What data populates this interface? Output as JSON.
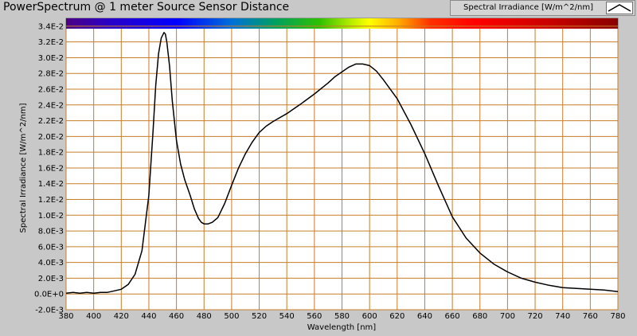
{
  "window": {
    "title": "PowerSpectrum @ 1 meter Source Sensor Distance"
  },
  "legend": {
    "label": "Spectral Irradiance [W/m^2/nm]",
    "swatch_icon": "peak-line-icon"
  },
  "colors": {
    "panel_background": "#c8c8c8",
    "plot_background": "#ffffff",
    "grid": "#c87d2a",
    "trace": "#000000"
  },
  "chart_data": {
    "type": "line",
    "xlabel": "Wavelength [nm]",
    "ylabel": "Spectral Irradiance [W/m^2/nm]",
    "xlim": [
      380,
      780
    ],
    "ylim": [
      -0.002,
      0.035
    ],
    "grid": true,
    "legend_position": "top-right",
    "x_ticks": [
      380,
      400,
      420,
      440,
      460,
      480,
      500,
      520,
      540,
      560,
      580,
      600,
      620,
      640,
      660,
      680,
      700,
      720,
      740,
      760,
      780
    ],
    "x_tick_labels": [
      "380",
      "400",
      "420",
      "440",
      "460",
      "480",
      "500",
      "520",
      "540",
      "560",
      "580",
      "600",
      "620",
      "640",
      "660",
      "680",
      "700",
      "720",
      "740",
      "760",
      "780"
    ],
    "y_ticks": [
      -0.002,
      0,
      0.002,
      0.004,
      0.006,
      0.008,
      0.01,
      0.012,
      0.014,
      0.016,
      0.018,
      0.02,
      0.022,
      0.024,
      0.026,
      0.028,
      0.03,
      0.032,
      0.034
    ],
    "y_tick_labels": [
      "-2.0E-3",
      "0.0E+0",
      "2.0E-3",
      "4.0E-3",
      "6.0E-3",
      "8.0E-3",
      "1.0E-2",
      "1.2E-2",
      "1.4E-2",
      "1.6E-2",
      "1.8E-2",
      "2.0E-2",
      "2.2E-2",
      "2.4E-2",
      "2.6E-2",
      "2.8E-2",
      "3.0E-2",
      "3.2E-2",
      "3.4E-2"
    ],
    "series": [
      {
        "color": "#000000",
        "x": [
          380,
          385,
          390,
          395,
          400,
          405,
          410,
          415,
          420,
          425,
          430,
          435,
          440,
          443,
          445,
          447,
          449,
          451,
          452,
          453,
          455,
          457,
          460,
          463,
          466,
          470,
          473,
          476,
          478,
          480,
          483,
          486,
          490,
          495,
          500,
          505,
          510,
          515,
          520,
          525,
          530,
          540,
          550,
          560,
          570,
          575,
          580,
          585,
          590,
          595,
          600,
          605,
          610,
          620,
          630,
          640,
          650,
          660,
          670,
          680,
          690,
          700,
          710,
          720,
          730,
          740,
          750,
          760,
          770,
          780
        ],
        "y": [
          0.0001,
          0.0002,
          0.0001,
          0.0002,
          0.0001,
          0.0002,
          0.0002,
          0.0004,
          0.0006,
          0.0012,
          0.0025,
          0.0055,
          0.0125,
          0.0205,
          0.0265,
          0.0305,
          0.0325,
          0.0332,
          0.033,
          0.032,
          0.029,
          0.0245,
          0.0195,
          0.0165,
          0.0145,
          0.0125,
          0.0108,
          0.0096,
          0.0091,
          0.0089,
          0.0089,
          0.0091,
          0.0097,
          0.0115,
          0.0138,
          0.016,
          0.0178,
          0.0193,
          0.0205,
          0.0213,
          0.0219,
          0.0229,
          0.0241,
          0.0254,
          0.0268,
          0.0276,
          0.0282,
          0.0288,
          0.0292,
          0.0292,
          0.029,
          0.0283,
          0.0272,
          0.0248,
          0.0215,
          0.0178,
          0.0137,
          0.0098,
          0.0071,
          0.0052,
          0.0038,
          0.0028,
          0.002,
          0.0015,
          0.0011,
          0.0008,
          0.0007,
          0.0006,
          0.0005,
          0.0003
        ]
      }
    ]
  }
}
